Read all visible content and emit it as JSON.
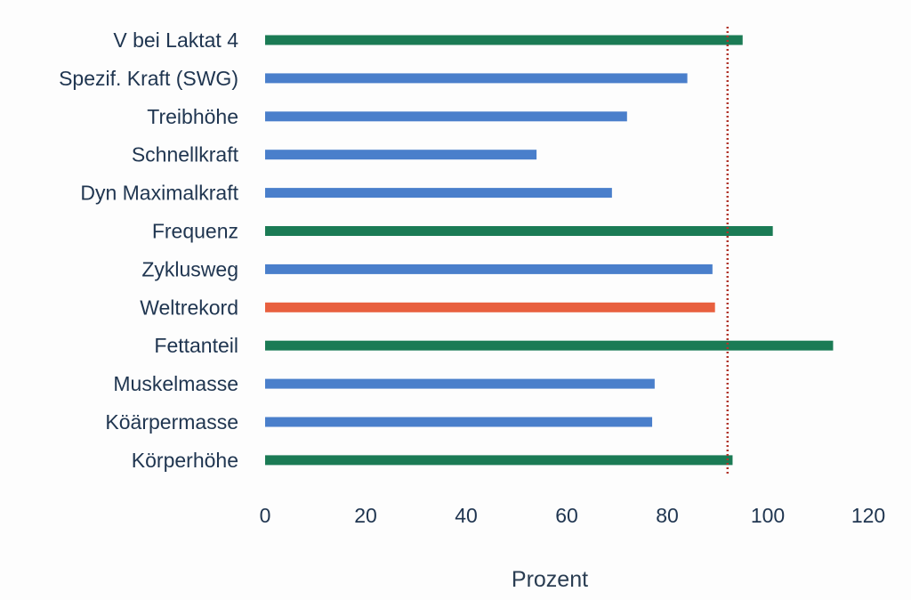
{
  "chart_data": {
    "type": "bar",
    "orientation": "horizontal",
    "categories": [
      "V bei Laktat 4",
      "Spezif. Kraft (SWG)",
      "Treibhöhe",
      "Schnellkraft",
      "Dyn Maximalkraft",
      "Frequenz",
      "Zyklusweg",
      "Weltrekord",
      "Fettanteil",
      "Muskelmasse",
      "Köärpermasse",
      "Körperhöhe"
    ],
    "values": [
      95,
      84,
      72,
      54,
      69,
      101,
      89,
      89.5,
      113,
      77.5,
      77,
      93
    ],
    "bar_colors": [
      "#1b7b55",
      "#4a7fcb",
      "#4a7fcb",
      "#4a7fcb",
      "#4a7fcb",
      "#1b7b55",
      "#4a7fcb",
      "#e8603f",
      "#1b7b55",
      "#4a7fcb",
      "#4a7fcb",
      "#1b7b55"
    ],
    "xlabel": "Prozent",
    "xlim": [
      0,
      120
    ],
    "xticks": [
      "0",
      "20",
      "40",
      "60",
      "80",
      "100",
      "120"
    ],
    "reference_line": {
      "x": 92,
      "style": "dotted",
      "color": "#b0342a"
    },
    "grid": false,
    "legend": "none"
  }
}
